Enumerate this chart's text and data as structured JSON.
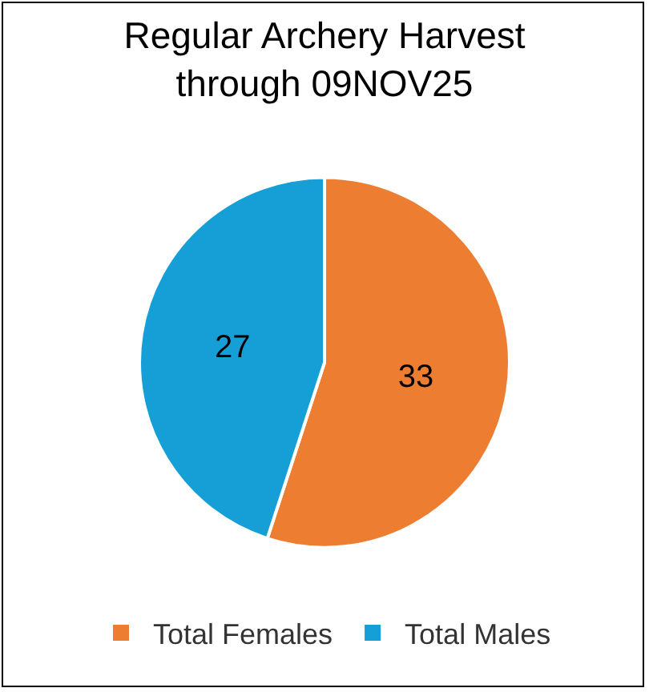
{
  "chart_data": {
    "type": "pie",
    "title": "Regular Archery Harvest\nthrough 09NOV25",
    "categories": [
      "Total Females",
      "Total Males"
    ],
    "values": [
      33,
      27
    ],
    "colors": [
      "#ed7d31",
      "#159fd6"
    ],
    "data_labels": true,
    "legend": "bottom"
  }
}
